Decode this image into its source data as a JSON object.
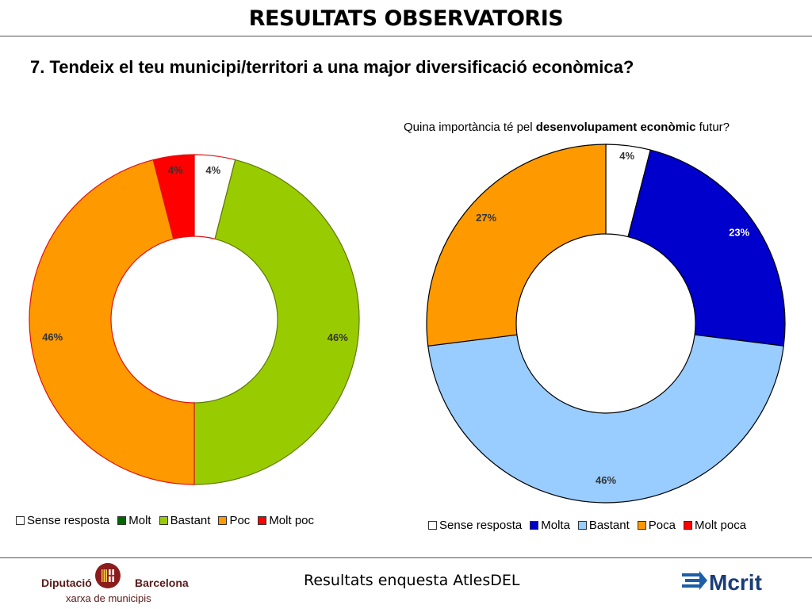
{
  "header": {
    "title": "RESULTATS OBSERVATORIS"
  },
  "question": "7. Tendeix el teu municipi/territori a una major diversificació econòmica?",
  "subquestion": {
    "prefix": "Quina importància té pel ",
    "bold": "desenvolupament econòmic",
    "suffix": " futur?"
  },
  "chart_data": [
    {
      "type": "pie",
      "donut": true,
      "title": "",
      "slices": [
        {
          "label": "Sense resposta",
          "value": 4,
          "color": "#ffffff",
          "display": "4%"
        },
        {
          "label": "Molt",
          "value": 0,
          "color": "#006600",
          "display": ""
        },
        {
          "label": "Bastant",
          "value": 46,
          "color": "#99cc00",
          "display": "46%"
        },
        {
          "label": "Poc",
          "value": 46,
          "color": "#ff9900",
          "display": "46%"
        },
        {
          "label": "Molt poc",
          "value": 4,
          "color": "#ff0000",
          "display": "4%"
        }
      ],
      "legend_position": "bottom"
    },
    {
      "type": "pie",
      "donut": true,
      "title": "",
      "slices": [
        {
          "label": "Sense resposta",
          "value": 4,
          "color": "#ffffff",
          "display": "4%"
        },
        {
          "label": "Molta",
          "value": 23,
          "color": "#0000cc",
          "display": "23%"
        },
        {
          "label": "Bastant",
          "value": 46,
          "color": "#99ccff",
          "display": "46%"
        },
        {
          "label": "Poca",
          "value": 27,
          "color": "#ff9900",
          "display": "27%"
        },
        {
          "label": "Molt poca",
          "value": 0,
          "color": "#ff0000",
          "display": ""
        }
      ],
      "legend_position": "bottom"
    }
  ],
  "footer": {
    "text": "Resultats enquesta AtlesDEL",
    "left_logo": {
      "word1": "Diputació",
      "word2": "Barcelona",
      "tagline": "xarxa de municipis"
    },
    "right_logo": {
      "text": "Mcrit"
    }
  }
}
